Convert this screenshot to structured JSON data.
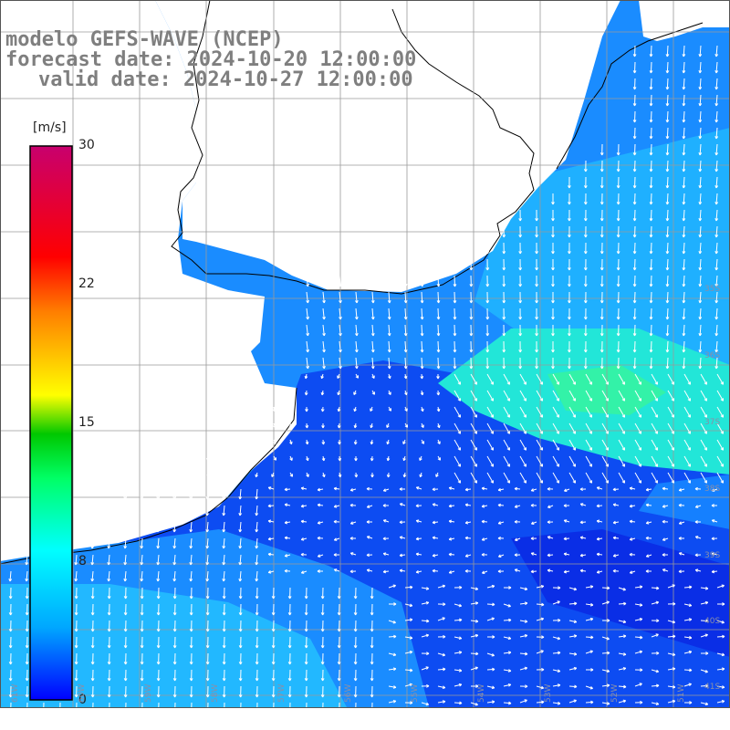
{
  "title": {
    "model": "modelo GEFS-WAVE (NCEP)",
    "forecast": "forecast date: 2024-10-20 12:00:00",
    "valid": "valid date: 2024-10-27 12:00:00"
  },
  "colorbar": {
    "unit": "[m/s]",
    "ticks": [
      {
        "value": 30,
        "label": "30"
      },
      {
        "value": 22,
        "label": "22"
      },
      {
        "value": 15,
        "label": "15"
      },
      {
        "value": 8,
        "label": "8"
      },
      {
        "value": 0,
        "label": "0"
      }
    ],
    "min": 0,
    "max": 30,
    "colors": [
      "#0000ff",
      "#00a6ff",
      "#00ffff",
      "#00ff66",
      "#00c800",
      "#ffff00",
      "#ff7f00",
      "#ff0000",
      "#c8006e"
    ]
  },
  "map": {
    "lat_labels": [
      "35S",
      "36S",
      "37S",
      "38S",
      "39S",
      "40S",
      "41S"
    ],
    "lon_labels": [
      "61W",
      "60W",
      "59W",
      "58W",
      "57W",
      "56W",
      "55W",
      "54W",
      "53W",
      "52W",
      "51W"
    ],
    "grid": true,
    "land_color": "#ffffff",
    "arrow_color": "#ffffff"
  }
}
